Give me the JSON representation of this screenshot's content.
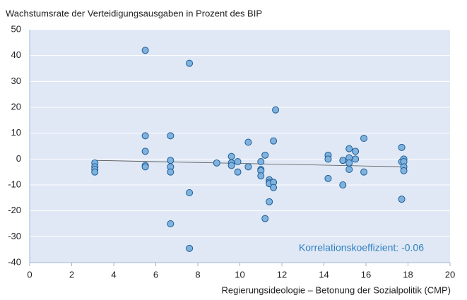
{
  "chart_data": {
    "type": "scatter",
    "title": "Wachstumsrate der Verteidigungsausgaben in Prozent des BIP",
    "x_label": "Regierungsideologie – Betonung der Sozialpolitik (CMP)",
    "annotation": "Korrelationskoeffizient: -0.06",
    "series": [
      {
        "color": "#7fb3de",
        "x": [
          3.1,
          3.1,
          3.1,
          3.1,
          5.5,
          5.5,
          5.5,
          5.5,
          5.5,
          6.7,
          6.7,
          6.7,
          6.7,
          6.7,
          7.6,
          7.6,
          7.6,
          8.9,
          9.6,
          9.6,
          9.6,
          9.9,
          9.9,
          10.4,
          10.4,
          11.0,
          11.0,
          11.0,
          11.0,
          11.2,
          11.2,
          11.4,
          11.4,
          11.4,
          11.4,
          11.6,
          11.6,
          11.6,
          11.7,
          14.2,
          14.2,
          14.2,
          14.9,
          14.9,
          15.2,
          15.2,
          15.2,
          15.2,
          15.5,
          15.5,
          15.9,
          15.9,
          17.7,
          17.7,
          17.7,
          17.8,
          17.8,
          17.8,
          17.8
        ],
        "values": [
          -1.5,
          -3,
          -4,
          -5,
          42,
          9,
          3,
          -2.5,
          -3,
          9,
          -0.5,
          -3,
          -5,
          -25,
          37,
          -13,
          -34.5,
          -1.5,
          1,
          -1.5,
          -2.5,
          -1,
          -5,
          6.5,
          -3,
          -1,
          -4,
          -4.5,
          -6.5,
          1.5,
          -23,
          -8,
          -9,
          -9.5,
          -16.5,
          7,
          -9,
          -11,
          19,
          1.5,
          0,
          -7.5,
          -0.5,
          -10,
          4,
          0.5,
          -1.5,
          -4,
          3,
          0,
          8,
          -5,
          4.5,
          -1,
          -15.5,
          0,
          -1,
          -3,
          -4.5
        ]
      }
    ],
    "trendline": {
      "x": [
        3.1,
        17.8
      ],
      "y": [
        -0.5,
        -3
      ]
    },
    "xlim": [
      0,
      20
    ],
    "xticks": [
      0,
      2,
      4,
      6,
      8,
      10,
      12,
      14,
      16,
      18,
      20
    ],
    "ylim": [
      -40,
      50
    ],
    "yticks": [
      -40,
      -30,
      -20,
      -10,
      0,
      10,
      20,
      30,
      40,
      50
    ],
    "grid": true
  }
}
